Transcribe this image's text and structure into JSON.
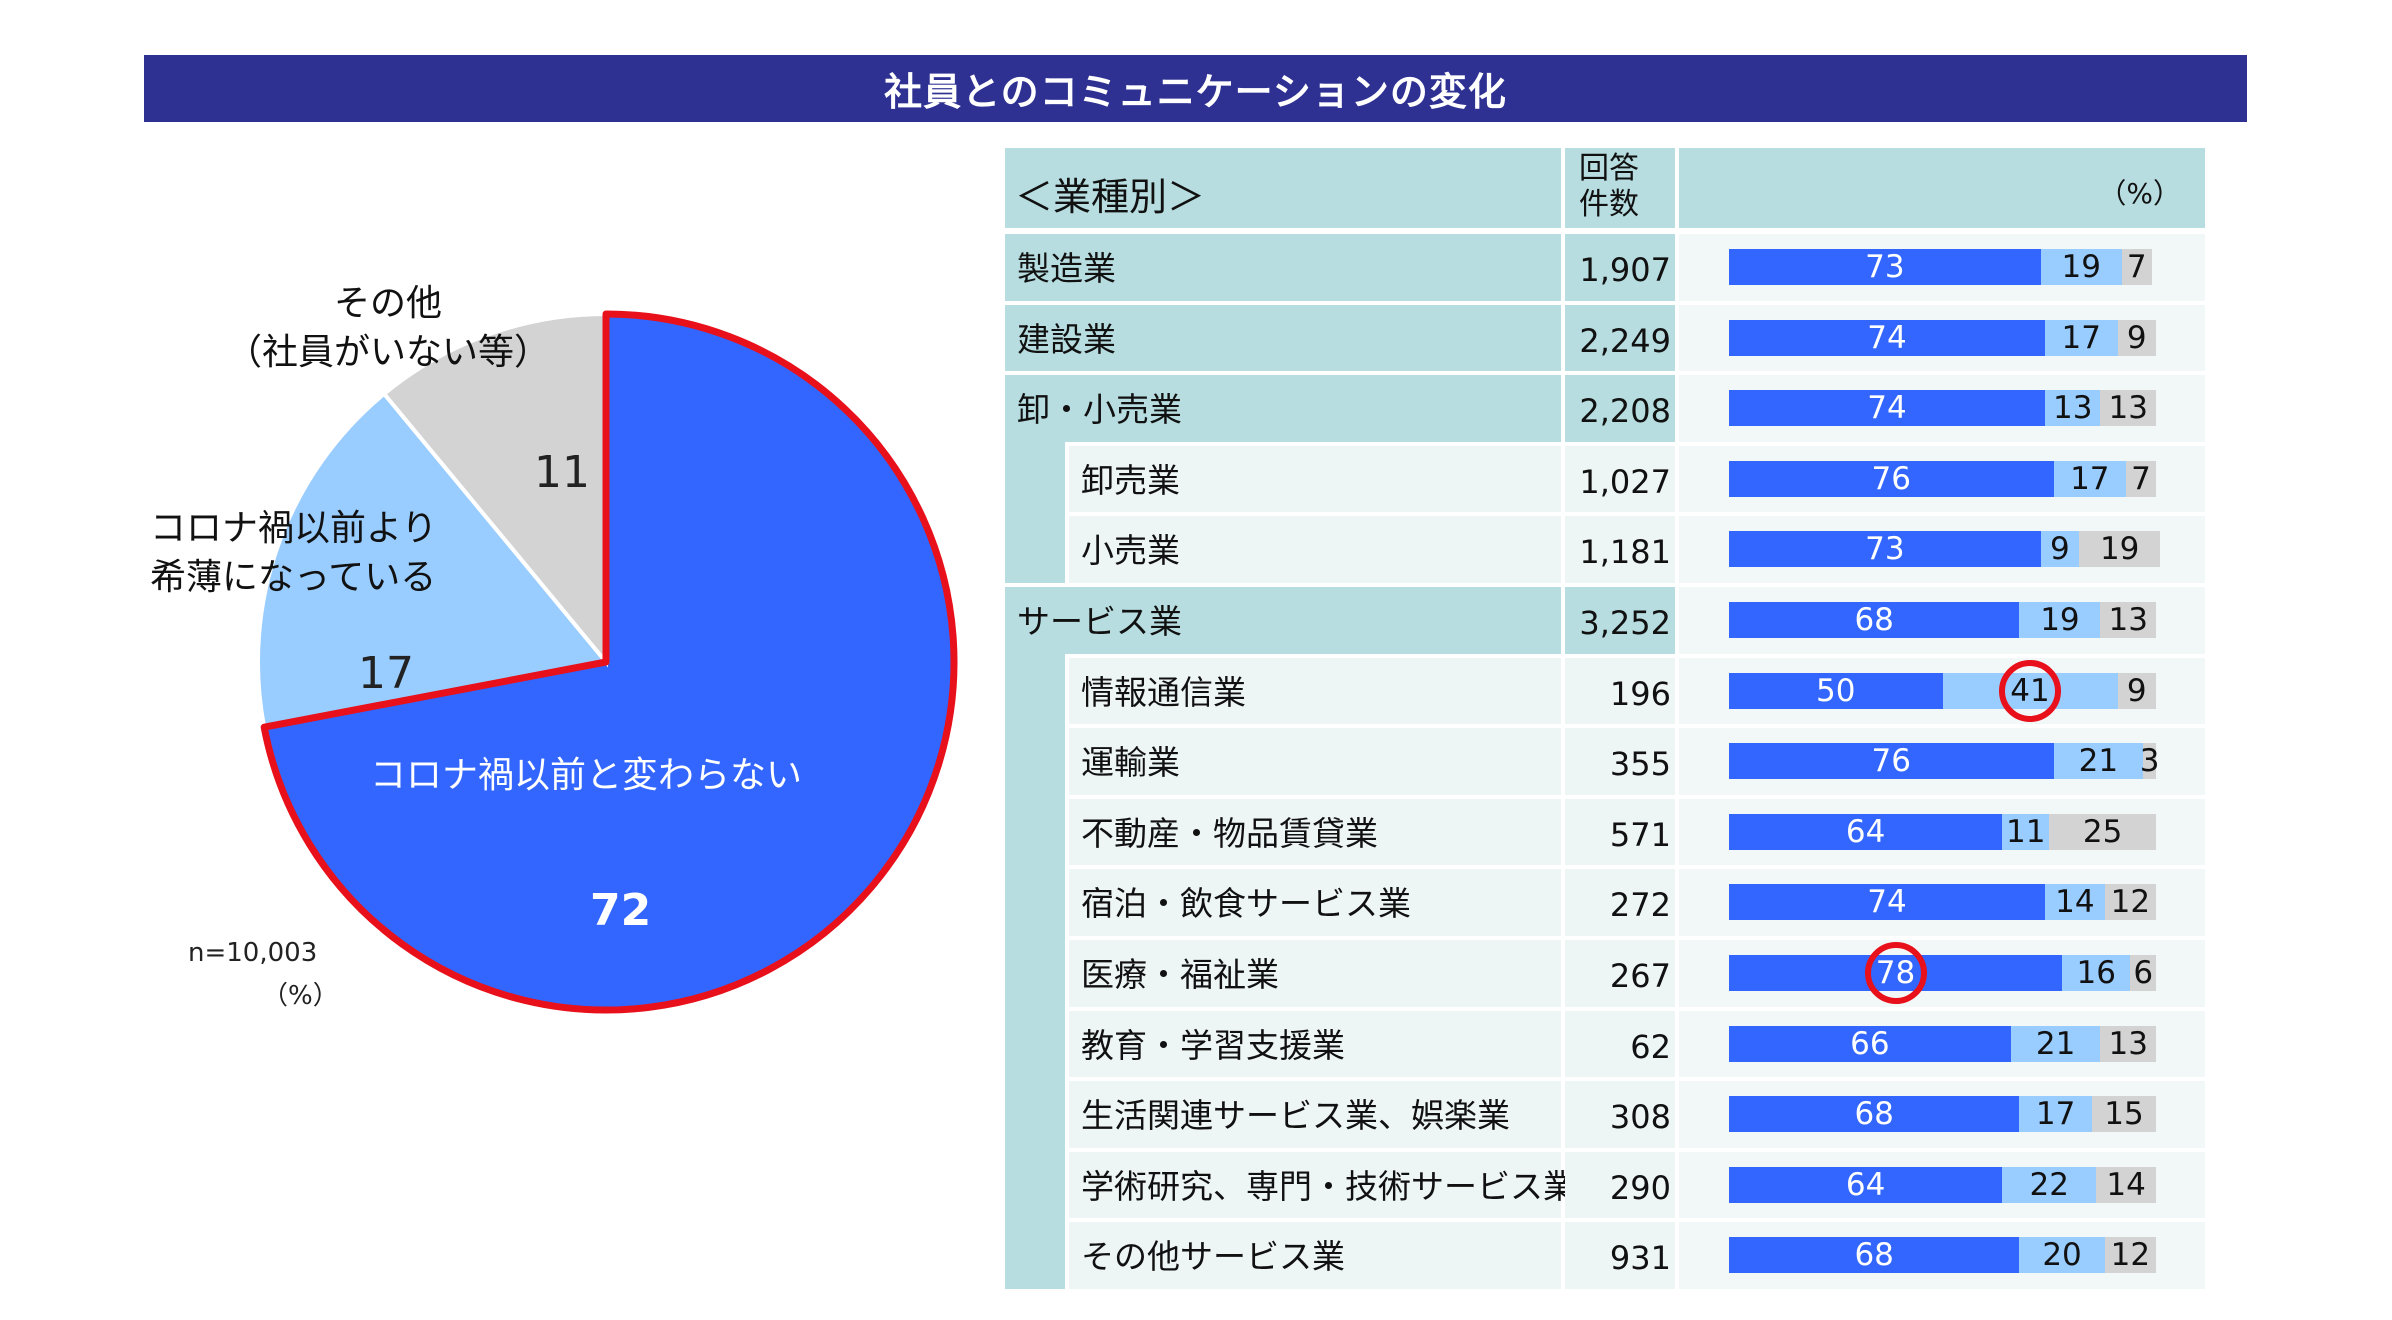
{
  "title": "社員とのコミュニケーションの変化",
  "pie": {
    "note_n": "n=10,003",
    "note_unit": "（%）"
  },
  "table": {
    "header_category": "＜業種別＞",
    "header_count_line1": "回答",
    "header_count_line2": "件数",
    "header_unit": "（%）"
  },
  "chart_data": [
    {
      "type": "pie",
      "slices": [
        {
          "label": "コロナ禍以前と変わらない",
          "value": 72,
          "color": "#3366ff",
          "highlighted": true
        },
        {
          "label_lines": [
            "コロナ禍以前より",
            "希薄になっている"
          ],
          "value": 17,
          "color": "#99ccff"
        },
        {
          "label_lines": [
            "その他",
            "（社員がいない等）"
          ],
          "value": 11,
          "color": "#d3d3d3"
        }
      ]
    },
    {
      "type": "bar",
      "stacked": true,
      "horizontal": true,
      "series_colors": [
        "#3366ff",
        "#99ccff",
        "#d3d3d3"
      ],
      "rows": [
        {
          "label": "製造業",
          "count": "1,907",
          "values": [
            73,
            19,
            7
          ],
          "level": 0
        },
        {
          "label": "建設業",
          "count": "2,249",
          "values": [
            74,
            17,
            9
          ],
          "level": 0
        },
        {
          "label": "卸・小売業",
          "count": "2,208",
          "values": [
            74,
            13,
            13
          ],
          "level": 0
        },
        {
          "label": "卸売業",
          "count": "1,027",
          "values": [
            76,
            17,
            7
          ],
          "level": 1
        },
        {
          "label": "小売業",
          "count": "1,181",
          "values": [
            73,
            9,
            19
          ],
          "level": 1
        },
        {
          "label": "サービス業",
          "count": "3,252",
          "values": [
            68,
            19,
            13
          ],
          "level": 0
        },
        {
          "label": "情報通信業",
          "count": "196",
          "values": [
            50,
            41,
            9
          ],
          "level": 1,
          "circled": 1
        },
        {
          "label": "運輸業",
          "count": "355",
          "values": [
            76,
            21,
            3
          ],
          "level": 1
        },
        {
          "label": "不動産・物品賃貸業",
          "count": "571",
          "values": [
            64,
            11,
            25
          ],
          "level": 1
        },
        {
          "label": "宿泊・飲食サービス業",
          "count": "272",
          "values": [
            74,
            14,
            12
          ],
          "level": 1
        },
        {
          "label": "医療・福祉業",
          "count": "267",
          "values": [
            78,
            16,
            6
          ],
          "level": 1,
          "circled": 0
        },
        {
          "label": "教育・学習支援業",
          "count": "62",
          "values": [
            66,
            21,
            13
          ],
          "level": 1
        },
        {
          "label": "生活関連サービス業、娯楽業",
          "count": "308",
          "values": [
            68,
            17,
            15
          ],
          "level": 1
        },
        {
          "label": "学術研究、専門・技術サービス業",
          "count": "290",
          "values": [
            64,
            22,
            14
          ],
          "level": 1
        },
        {
          "label": "その他サービス業",
          "count": "931",
          "values": [
            68,
            20,
            12
          ],
          "level": 1
        }
      ]
    }
  ]
}
